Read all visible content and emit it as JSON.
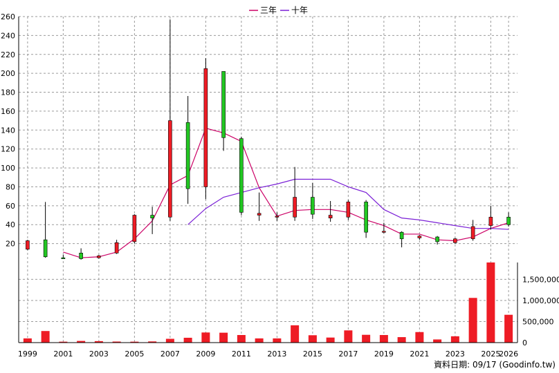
{
  "legend": [
    {
      "label": "三年",
      "color": "#cc0066"
    },
    {
      "label": "十年",
      "color": "#7a1fd6"
    }
  ],
  "source_text": "資料日期: 09/17 (Goodinfo.tw)",
  "chart_data": {
    "type": "candlestick+line+bar",
    "price_axis": {
      "ylim": [
        0,
        260
      ],
      "ticks": [
        20,
        40,
        60,
        80,
        100,
        120,
        140,
        160,
        180,
        200,
        220,
        240,
        260
      ]
    },
    "volume_axis": {
      "ylim": [
        0,
        1900000
      ],
      "ticks": [
        0,
        500000,
        1000000,
        1500000
      ],
      "tick_labels": [
        "0",
        "500,000",
        "1,000,000",
        "1,500,000"
      ]
    },
    "x_tick_labels": [
      "1999",
      "2001",
      "2003",
      "2005",
      "2007",
      "2009",
      "2011",
      "2013",
      "2015",
      "2017",
      "2019",
      "2021",
      "2023",
      "2025",
      "2026"
    ],
    "years": [
      1999,
      2000,
      2001,
      2002,
      2003,
      2004,
      2005,
      2006,
      2007,
      2008,
      2009,
      2010,
      2011,
      2012,
      2013,
      2014,
      2015,
      2016,
      2017,
      2018,
      2019,
      2020,
      2021,
      2022,
      2023,
      2024,
      2025,
      2026
    ],
    "candles": [
      {
        "year": 1999,
        "open": 23,
        "close": 14,
        "high": 24,
        "low": 13
      },
      {
        "year": 2000,
        "open": 6,
        "close": 24,
        "high": 64,
        "low": 5
      },
      {
        "year": 2001,
        "open": 5,
        "close": 5,
        "high": 8,
        "low": 4
      },
      {
        "year": 2002,
        "open": 4,
        "close": 10,
        "high": 15,
        "low": 3
      },
      {
        "year": 2003,
        "open": 7,
        "close": 5,
        "high": 8,
        "low": 4
      },
      {
        "year": 2004,
        "open": 21,
        "close": 10,
        "high": 24,
        "low": 9
      },
      {
        "year": 2005,
        "open": 50,
        "close": 22,
        "high": 51,
        "low": 20
      },
      {
        "year": 2006,
        "open": 47,
        "close": 50,
        "high": 59,
        "low": 30
      },
      {
        "year": 2007,
        "open": 150,
        "close": 48,
        "high": 257,
        "low": 44
      },
      {
        "year": 2008,
        "open": 78,
        "close": 148,
        "high": 176,
        "low": 62
      },
      {
        "year": 2009,
        "open": 205,
        "close": 80,
        "high": 216,
        "low": 67
      },
      {
        "year": 2010,
        "open": 132,
        "close": 202,
        "high": 202,
        "low": 118
      },
      {
        "year": 2011,
        "open": 53,
        "close": 131,
        "high": 133,
        "low": 50
      },
      {
        "year": 2012,
        "open": 52,
        "close": 50,
        "high": 74,
        "low": 44
      },
      {
        "year": 2013,
        "open": 49,
        "close": 48,
        "high": 53,
        "low": 44
      },
      {
        "year": 2014,
        "open": 69,
        "close": 48,
        "high": 101,
        "low": 44
      },
      {
        "year": 2015,
        "open": 51,
        "close": 69,
        "high": 84,
        "low": 46
      },
      {
        "year": 2016,
        "open": 50,
        "close": 47,
        "high": 65,
        "low": 43
      },
      {
        "year": 2017,
        "open": 64,
        "close": 48,
        "high": 66,
        "low": 45
      },
      {
        "year": 2018,
        "open": 32,
        "close": 64,
        "high": 66,
        "low": 26
      },
      {
        "year": 2019,
        "open": 33,
        "close": 32,
        "high": 42,
        "low": 31
      },
      {
        "year": 2020,
        "open": 25,
        "close": 32,
        "high": 33,
        "low": 16
      },
      {
        "year": 2021,
        "open": 28,
        "close": 26,
        "high": 29,
        "low": 24
      },
      {
        "year": 2022,
        "open": 22,
        "close": 27,
        "high": 28,
        "low": 19
      },
      {
        "year": 2023,
        "open": 25,
        "close": 21,
        "high": 26,
        "low": 20
      },
      {
        "year": 2024,
        "open": 38,
        "close": 25,
        "high": 45,
        "low": 23
      },
      {
        "year": 2025,
        "open": 48,
        "close": 39,
        "high": 60,
        "low": 35
      },
      {
        "year": 2026,
        "open": 40,
        "close": 48,
        "high": 53,
        "low": 38
      }
    ],
    "series": [
      {
        "name": "三年",
        "points": [
          [
            2001,
            11
          ],
          [
            2002,
            5
          ],
          [
            2003,
            6
          ],
          [
            2004,
            11
          ],
          [
            2005,
            25
          ],
          [
            2006,
            44
          ],
          [
            2007,
            82
          ],
          [
            2008,
            92
          ],
          [
            2009,
            142
          ],
          [
            2010,
            137
          ],
          [
            2011,
            128
          ],
          [
            2012,
            79
          ],
          [
            2013,
            49
          ],
          [
            2014,
            55
          ],
          [
            2015,
            56
          ],
          [
            2016,
            56
          ],
          [
            2017,
            53
          ],
          [
            2018,
            45
          ],
          [
            2019,
            39
          ],
          [
            2020,
            30
          ],
          [
            2021,
            30
          ],
          [
            2022,
            24
          ],
          [
            2023,
            23
          ],
          [
            2024,
            27
          ],
          [
            2025,
            36
          ],
          [
            2026,
            42
          ]
        ]
      },
      {
        "name": "十年",
        "points": [
          [
            2008,
            40
          ],
          [
            2009,
            57
          ],
          [
            2010,
            69
          ],
          [
            2011,
            74
          ],
          [
            2012,
            79
          ],
          [
            2013,
            83
          ],
          [
            2014,
            88
          ],
          [
            2015,
            88
          ],
          [
            2016,
            88
          ],
          [
            2017,
            80
          ],
          [
            2018,
            74
          ],
          [
            2019,
            56
          ],
          [
            2020,
            47
          ],
          [
            2021,
            45
          ],
          [
            2022,
            42
          ],
          [
            2023,
            39
          ],
          [
            2024,
            36
          ],
          [
            2025,
            36
          ],
          [
            2026,
            35
          ]
        ]
      }
    ],
    "volume": [
      {
        "year": 1999,
        "value": 100000
      },
      {
        "year": 2000,
        "value": 275000
      },
      {
        "year": 2001,
        "value": 22000
      },
      {
        "year": 2002,
        "value": 40000
      },
      {
        "year": 2003,
        "value": 35000
      },
      {
        "year": 2004,
        "value": 25000
      },
      {
        "year": 2005,
        "value": 22000
      },
      {
        "year": 2006,
        "value": 28000
      },
      {
        "year": 2007,
        "value": 90000
      },
      {
        "year": 2008,
        "value": 115000
      },
      {
        "year": 2009,
        "value": 240000
      },
      {
        "year": 2010,
        "value": 235000
      },
      {
        "year": 2011,
        "value": 180000
      },
      {
        "year": 2012,
        "value": 100000
      },
      {
        "year": 2013,
        "value": 100000
      },
      {
        "year": 2014,
        "value": 410000
      },
      {
        "year": 2015,
        "value": 175000
      },
      {
        "year": 2016,
        "value": 120000
      },
      {
        "year": 2017,
        "value": 290000
      },
      {
        "year": 2018,
        "value": 185000
      },
      {
        "year": 2019,
        "value": 180000
      },
      {
        "year": 2020,
        "value": 130000
      },
      {
        "year": 2021,
        "value": 250000
      },
      {
        "year": 2022,
        "value": 75000
      },
      {
        "year": 2023,
        "value": 150000
      },
      {
        "year": 2024,
        "value": 1060000
      },
      {
        "year": 2025,
        "value": 1970000
      },
      {
        "year": 2026,
        "value": 660000
      }
    ],
    "colors": {
      "up": "#ee1c25",
      "down": "#22c722",
      "volume": "#ee1c25",
      "wick": "#000000"
    },
    "grid": true,
    "legend_position": "top-center"
  }
}
